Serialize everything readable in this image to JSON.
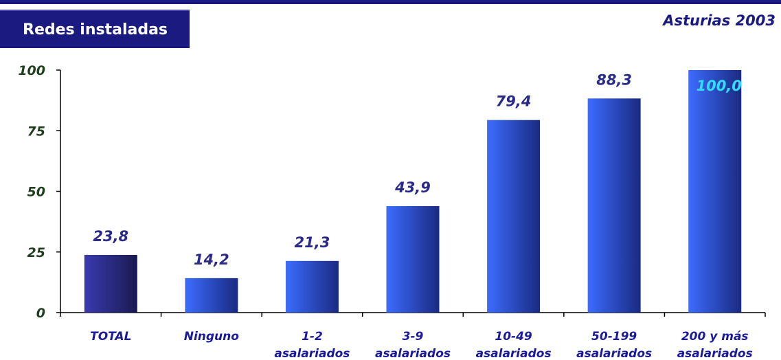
{
  "header": {
    "title": "Redes instaladas",
    "subtitle": "Asturias 2003"
  },
  "colors": {
    "title_bg": "#1a1a80",
    "total_bar_start": "#3a3ab0",
    "total_bar_end": "#1a1a50",
    "bar_start": "#3c6cff",
    "bar_end": "#1a2a80",
    "value_label": "#2a2a8a",
    "value_label_inside": "#33ddff",
    "category_label": "#1a1a9a",
    "tick_label": "#1f3f1f"
  },
  "chart_data": {
    "type": "bar",
    "title": "",
    "xlabel": "",
    "ylabel": "",
    "ylim": [
      0,
      100
    ],
    "yticks": [
      "0",
      "25",
      "50",
      "75",
      "100"
    ],
    "categories": [
      [
        "TOTAL"
      ],
      [
        "Ninguno"
      ],
      [
        "1-2",
        "asalariados"
      ],
      [
        "3-9",
        "asalariados"
      ],
      [
        "10-49",
        "asalariados"
      ],
      [
        "50-199",
        "asalariados"
      ],
      [
        "200 y más",
        "asalariados"
      ]
    ],
    "values": [
      23.8,
      14.2,
      21.3,
      43.9,
      79.4,
      88.3,
      100.0
    ],
    "data_labels": [
      "23,8",
      "14,2",
      "21,3",
      "43,9",
      "79,4",
      "88,3",
      "100,0"
    ],
    "grid": false,
    "legend": "none"
  }
}
